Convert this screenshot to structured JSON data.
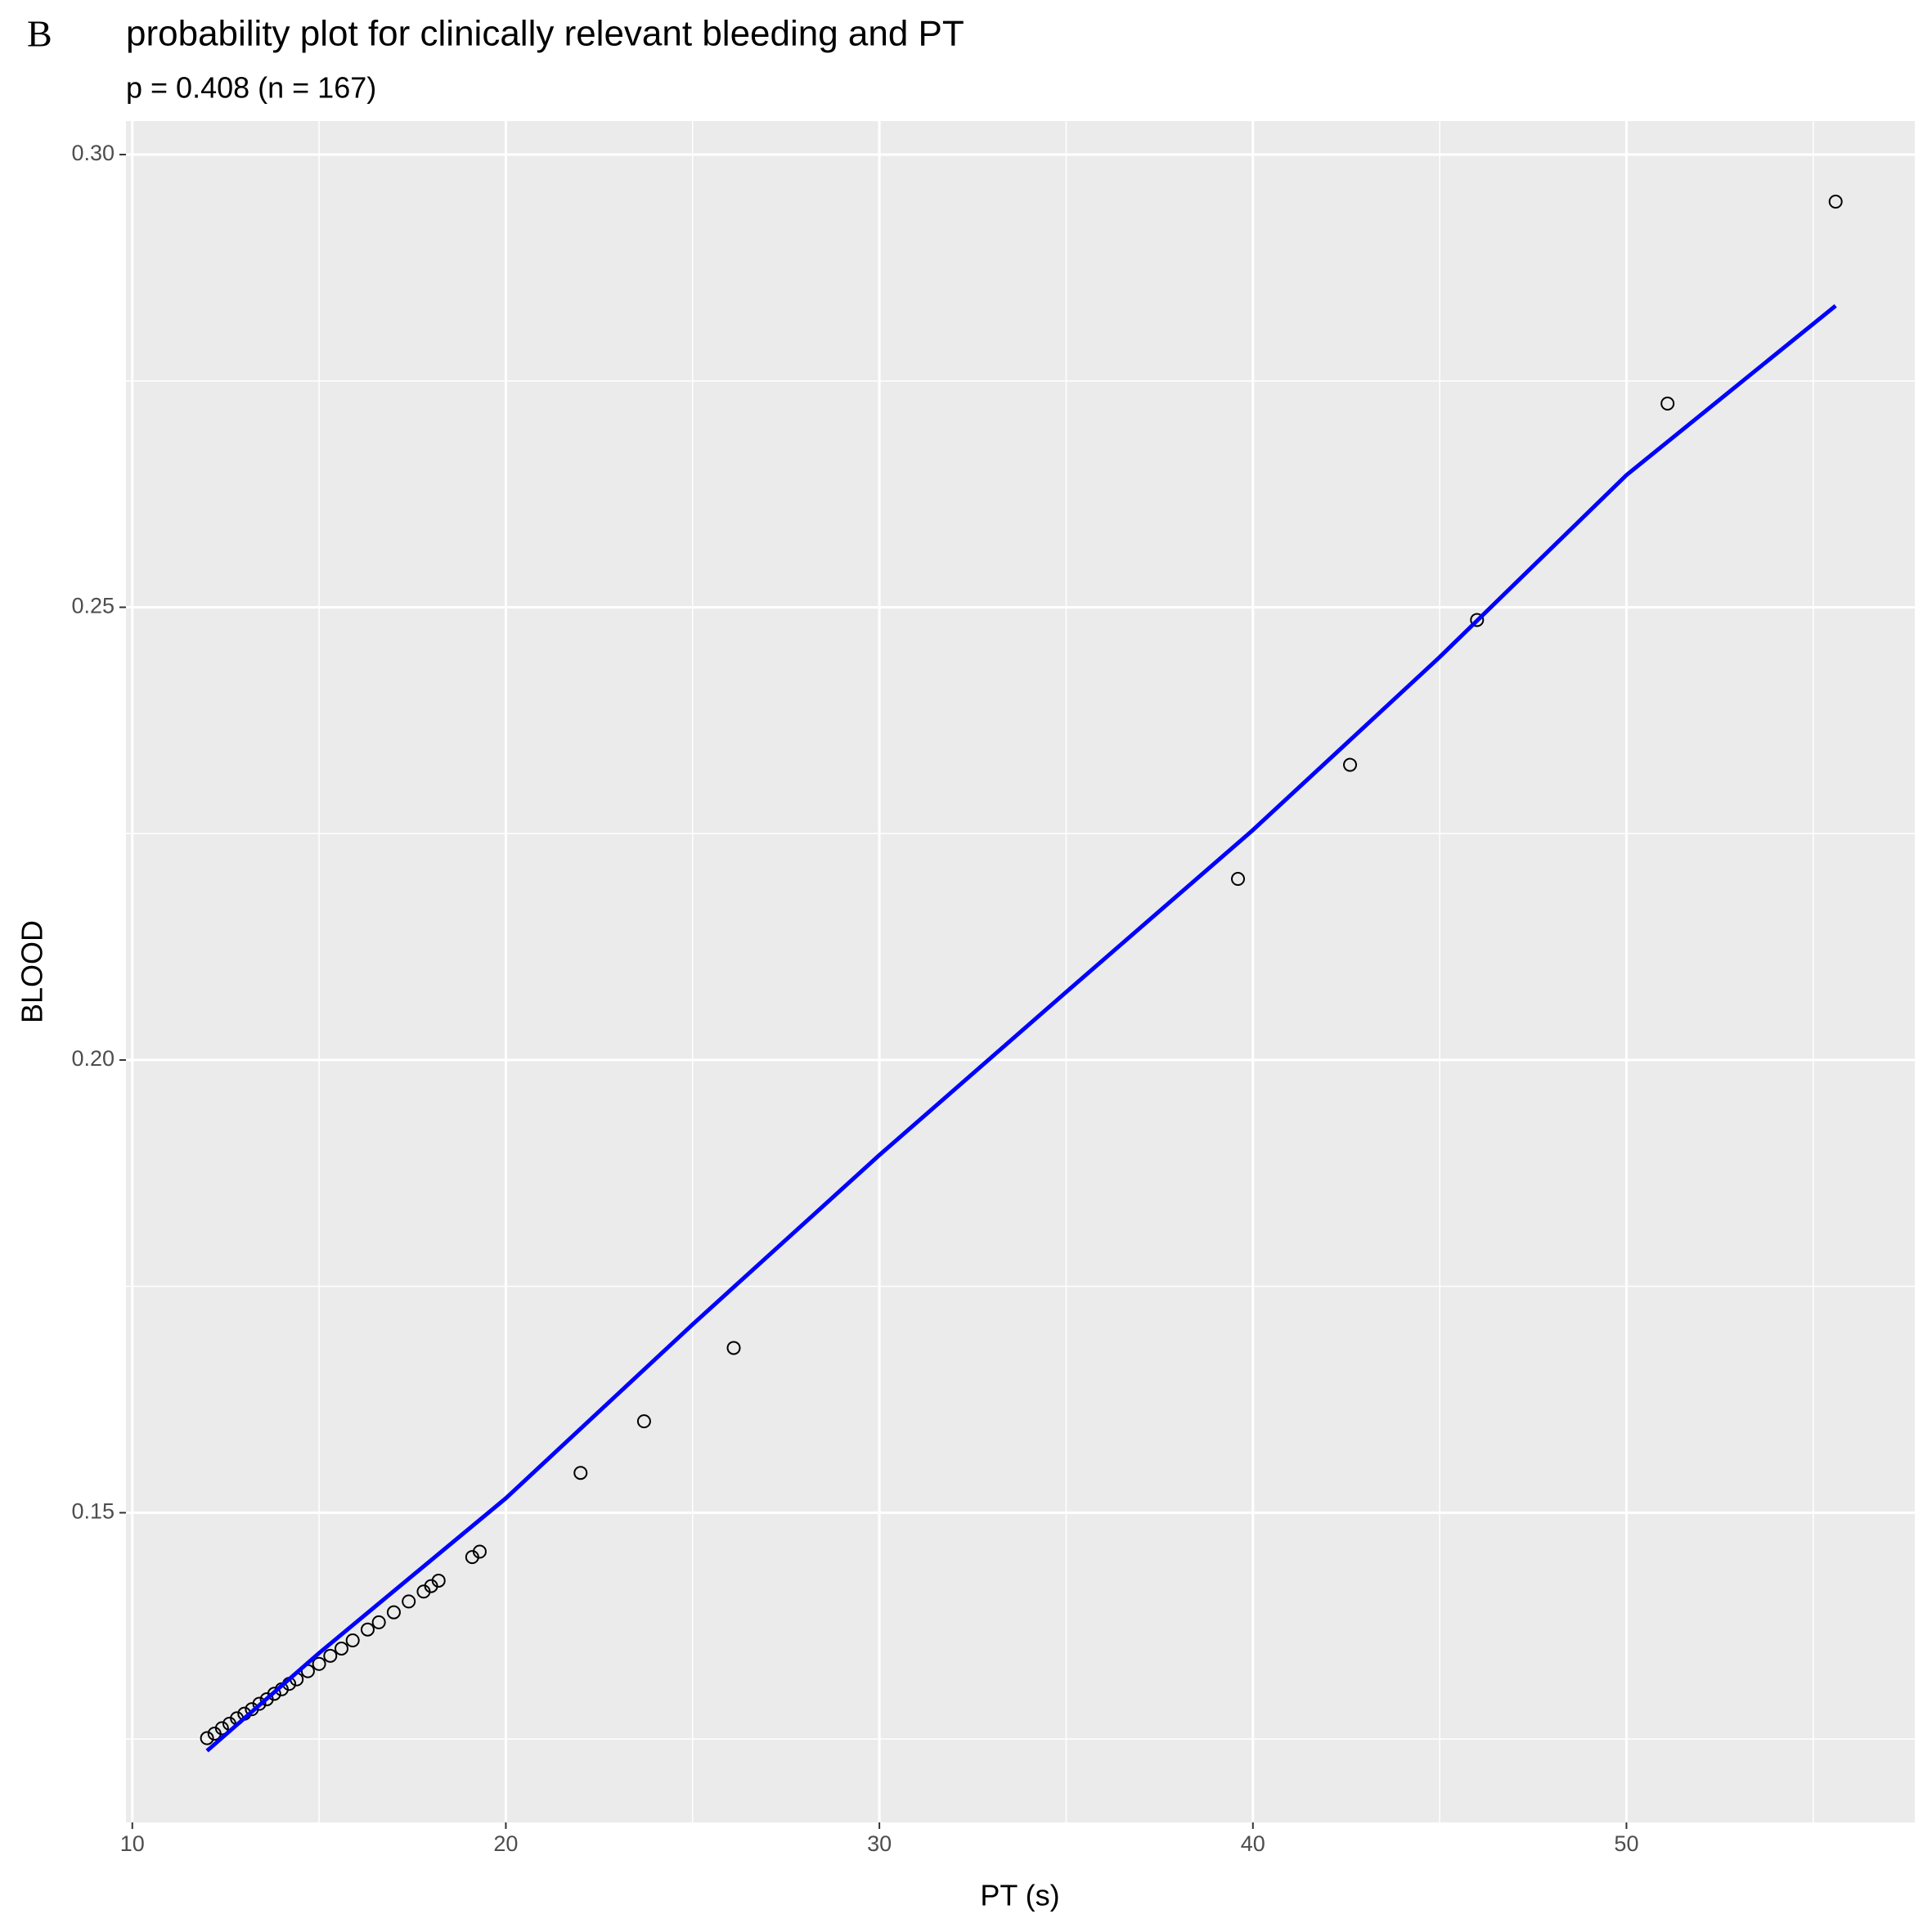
{
  "chart_data": {
    "type": "scatter",
    "panel_label": "B",
    "title": "probability plot for clinically relevant bleeding and PT",
    "subtitle": "p = 0.408 (n = 167)",
    "x_label": "PT (s)",
    "y_label": "BLOOD",
    "xlim": [
      9.83,
      57.72
    ],
    "ylim": [
      0.1158,
      0.3037
    ],
    "xticks": [
      10,
      20,
      30,
      40,
      50
    ],
    "yticks": [
      0.15,
      {
        "value": 0.2,
        "label": "0.20"
      },
      0.25,
      {
        "value": 0.3,
        "label": "0.30"
      }
    ],
    "grid": true,
    "series": [
      {
        "kind": "points",
        "color": "#000000",
        "x": [
          12.0,
          12.2,
          12.4,
          12.6,
          12.8,
          13.0,
          13.2,
          13.4,
          13.6,
          13.8,
          14.0,
          14.2,
          14.4,
          14.7,
          15.0,
          15.3,
          15.6,
          15.9,
          16.3,
          16.6,
          17.0,
          17.4,
          17.8,
          18.0,
          18.2,
          19.1,
          19.3,
          22.0,
          23.7,
          26.1,
          39.6,
          42.6,
          46.0,
          51.1,
          55.6
        ],
        "values": [
          0.1251,
          0.1256,
          0.1262,
          0.1267,
          0.1273,
          0.1278,
          0.1283,
          0.1289,
          0.1294,
          0.13,
          0.1305,
          0.1311,
          0.1316,
          0.1325,
          0.1333,
          0.1342,
          0.135,
          0.1359,
          0.1371,
          0.1379,
          0.139,
          0.1402,
          0.1413,
          0.1419,
          0.1425,
          0.1451,
          0.1457,
          0.1544,
          0.1601,
          0.1682,
          0.22,
          0.2326,
          0.2486,
          0.2725,
          0.2948
        ]
      },
      {
        "kind": "line",
        "color": "#0000ff",
        "x": [
          12.0,
          15,
          20,
          25,
          30,
          35,
          40,
          45,
          50,
          55.6
        ],
        "values": [
          0.1237,
          0.1345,
          0.1516,
          0.1708,
          0.1895,
          0.2075,
          0.2254,
          0.2445,
          0.2646,
          0.2833
        ]
      }
    ]
  }
}
